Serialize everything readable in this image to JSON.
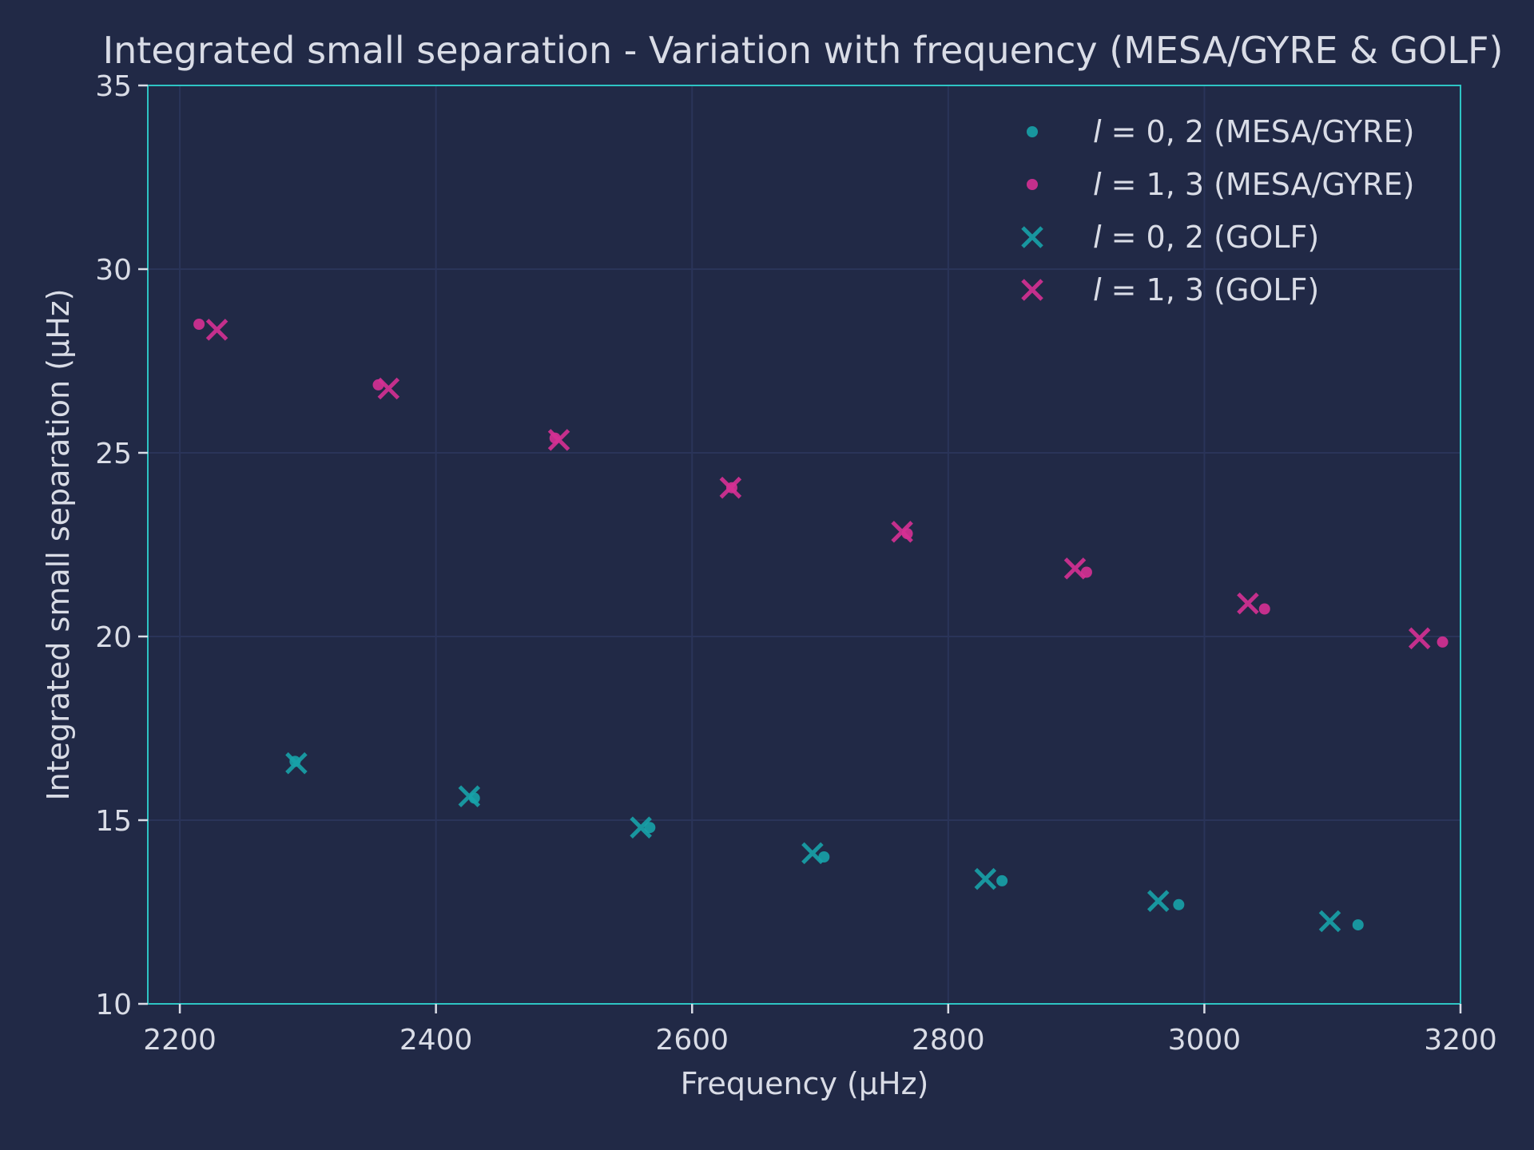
{
  "chart_data": {
    "type": "scatter",
    "title": "Integrated small separation - Variation with frequency (MESA/GYRE & GOLF)",
    "xlabel": "Frequency (μHz)",
    "ylabel": "Integrated small separation (μHz)",
    "xlim": [
      2175,
      3200
    ],
    "ylim": [
      10,
      35
    ],
    "xticks": [
      2200,
      2400,
      2600,
      2800,
      3000,
      3200
    ],
    "yticks": [
      10,
      15,
      20,
      25,
      30,
      35
    ],
    "grid": true,
    "legend_position": "top-right",
    "series": [
      {
        "name": "l = 0, 2 (MESA/GYRE)",
        "legend_italic": "l",
        "legend_rest": " = 0, 2 (MESA/GYRE)",
        "marker": "dot",
        "color": "#17a2a8",
        "x": [
          2290,
          2430,
          2567,
          2703,
          2842,
          2980,
          3120
        ],
        "y": [
          16.6,
          15.6,
          14.8,
          14.0,
          13.35,
          12.7,
          12.15
        ]
      },
      {
        "name": "l = 1, 3 (MESA/GYRE)",
        "legend_italic": "l",
        "legend_rest": " = 1, 3 (MESA/GYRE)",
        "marker": "dot",
        "color": "#d63094",
        "x": [
          2215,
          2355,
          2493,
          2631,
          2768,
          2908,
          3047,
          3186
        ],
        "y": [
          28.5,
          26.85,
          25.4,
          24.05,
          22.8,
          21.75,
          20.75,
          19.85
        ]
      },
      {
        "name": "l = 0, 2 (GOLF)",
        "legend_italic": "l",
        "legend_rest": " = 0, 2 (GOLF)",
        "marker": "x",
        "color": "#17a2a8",
        "x": [
          2291,
          2426,
          2560,
          2694,
          2829,
          2964,
          3098
        ],
        "y": [
          16.55,
          15.65,
          14.8,
          14.1,
          13.4,
          12.8,
          12.25
        ]
      },
      {
        "name": "l = 1, 3 (GOLF)",
        "legend_italic": "l",
        "legend_rest": " = 1, 3 (GOLF)",
        "marker": "x",
        "color": "#d63094",
        "x": [
          2229,
          2363,
          2496,
          2630,
          2764,
          2899,
          3034,
          3168
        ],
        "y": [
          28.35,
          26.75,
          25.35,
          24.05,
          22.85,
          21.85,
          20.9,
          19.95
        ]
      }
    ]
  }
}
